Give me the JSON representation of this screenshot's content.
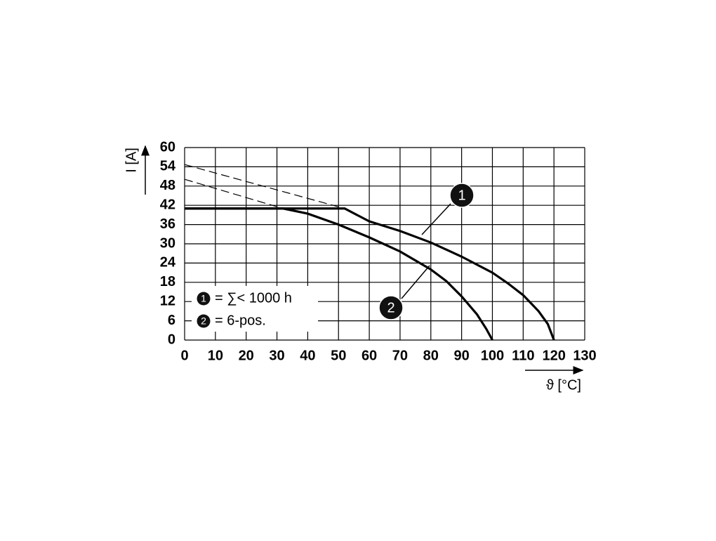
{
  "chart_data": {
    "type": "line",
    "x_label": "ϑ [°C]",
    "y_label": "I [A]",
    "xlim": [
      0,
      130
    ],
    "xticks": [
      0,
      10,
      20,
      30,
      40,
      50,
      60,
      70,
      80,
      90,
      100,
      110,
      120,
      130
    ],
    "ylim": [
      0,
      60
    ],
    "yticks": [
      0,
      6,
      12,
      18,
      24,
      30,
      36,
      42,
      48,
      54,
      60
    ],
    "grid": true,
    "series": [
      {
        "marker": "1",
        "name": "= ∑< 1000 h",
        "color": "#000000",
        "x": [
          0,
          52,
          60,
          70,
          80,
          90,
          100,
          105,
          110,
          115,
          118,
          120
        ],
        "values": [
          41,
          41,
          37,
          34,
          30.4,
          26,
          21,
          17.7,
          14,
          9,
          5,
          0
        ],
        "extension": {
          "x": [
            0,
            52
          ],
          "values": [
            54.7,
            41
          ]
        }
      },
      {
        "marker": "2",
        "name": "= 6-pos.",
        "color": "#000000",
        "x": [
          0,
          32,
          40,
          50,
          60,
          70,
          80,
          85,
          90,
          95,
          98,
          100
        ],
        "values": [
          41,
          41,
          39.4,
          36,
          32,
          27.6,
          22,
          18.4,
          13.6,
          8,
          3.5,
          0
        ],
        "extension": {
          "x": [
            0,
            32
          ],
          "values": [
            50.1,
            41
          ]
        }
      }
    ]
  }
}
